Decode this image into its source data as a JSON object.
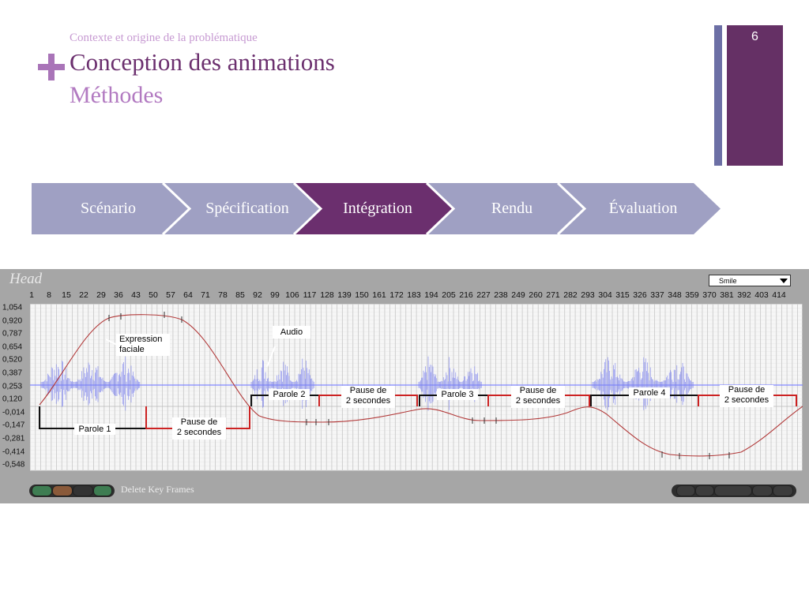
{
  "slide": {
    "context": "Contexte et origine de la problématique",
    "title": "Conception des animations",
    "subtitle": "Méthodes",
    "page_number": "6",
    "plus_color": "#a974b8"
  },
  "steps": [
    {
      "label": "Scénario",
      "active": false
    },
    {
      "label": "Spécification",
      "active": false
    },
    {
      "label": "Intégration",
      "active": true
    },
    {
      "label": "Rendu",
      "active": false
    },
    {
      "label": "Évaluation",
      "active": false
    }
  ],
  "colors": {
    "step_inactive": "#9fa0c3",
    "step_active": "#6b2f6e",
    "accent_dark": "#653065",
    "accent_blue": "#6c6fa5"
  },
  "editor": {
    "track_name": "Head",
    "expression_select": "Smile",
    "frame_labels": [
      "1",
      "8",
      "15",
      "22",
      "29",
      "36",
      "43",
      "50",
      "57",
      "64",
      "71",
      "78",
      "85",
      "92",
      "99",
      "106",
      "117",
      "128",
      "139",
      "150",
      "161",
      "172",
      "183",
      "194",
      "205",
      "216",
      "227",
      "238",
      "249",
      "260",
      "271",
      "282",
      "293",
      "304",
      "315",
      "326",
      "337",
      "348",
      "359",
      "370",
      "381",
      "392",
      "403",
      "414"
    ],
    "y_labels": [
      "1,054",
      "0,920",
      "0,787",
      "0,654",
      "0,520",
      "0,387",
      "0,253",
      "0,120",
      "-0,014",
      "-0,147",
      "-0,281",
      "-0,414",
      "-0,548"
    ],
    "annotations": {
      "expression": "Expression faciale",
      "expression_line1": "Expression",
      "expression_line2": "faciale",
      "audio": "Audio",
      "parole1": "Parole 1",
      "parole2": "Parole 2",
      "parole3": "Parole 3",
      "parole4": "Parole 4",
      "pause_l1a": "Pause de",
      "pause_l1b": "2 secondes"
    },
    "delete_label": "Delete Key Frames"
  }
}
